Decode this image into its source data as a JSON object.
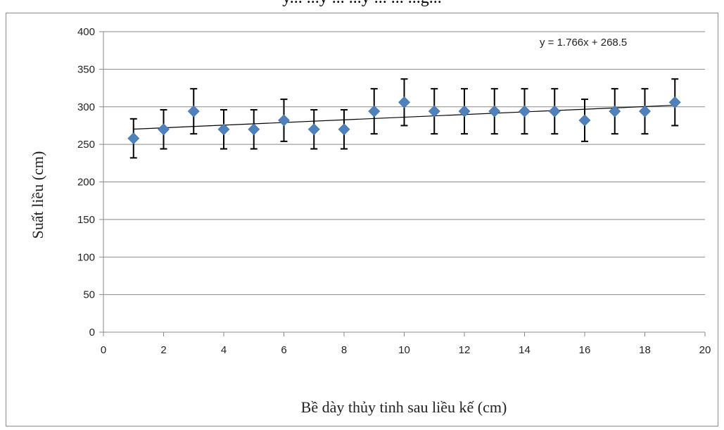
{
  "chart_data": {
    "type": "scatter",
    "top_fragment": "y... ...y ... ...y ... ... ...g...",
    "xlabel": "Bề dày thủy tinh sau liều kế (cm)",
    "ylabel": "Suất liều (cm)",
    "xlim": [
      0,
      20
    ],
    "ylim": [
      0,
      400
    ],
    "xticks": [
      0,
      2,
      4,
      6,
      8,
      10,
      12,
      14,
      16,
      18,
      20
    ],
    "yticks": [
      0,
      50,
      100,
      150,
      200,
      250,
      300,
      350,
      400
    ],
    "grid": "horizontal",
    "marker_color": "#4f81bd",
    "trendline": {
      "equation": "y = 1.766x + 268.5",
      "slope": 1.766,
      "intercept": 268.5
    },
    "points": [
      {
        "x": 1,
        "y": 258,
        "err": 26
      },
      {
        "x": 2,
        "y": 270,
        "err": 26
      },
      {
        "x": 3,
        "y": 294,
        "err": 30
      },
      {
        "x": 4,
        "y": 270,
        "err": 26
      },
      {
        "x": 5,
        "y": 270,
        "err": 26
      },
      {
        "x": 6,
        "y": 282,
        "err": 28
      },
      {
        "x": 7,
        "y": 270,
        "err": 26
      },
      {
        "x": 8,
        "y": 270,
        "err": 26
      },
      {
        "x": 9,
        "y": 294,
        "err": 30
      },
      {
        "x": 10,
        "y": 306,
        "err": 31
      },
      {
        "x": 11,
        "y": 294,
        "err": 30
      },
      {
        "x": 12,
        "y": 294,
        "err": 30
      },
      {
        "x": 13,
        "y": 294,
        "err": 30
      },
      {
        "x": 14,
        "y": 294,
        "err": 30
      },
      {
        "x": 15,
        "y": 294,
        "err": 30
      },
      {
        "x": 16,
        "y": 282,
        "err": 28
      },
      {
        "x": 17,
        "y": 294,
        "err": 30
      },
      {
        "x": 18,
        "y": 294,
        "err": 30
      },
      {
        "x": 19,
        "y": 306,
        "err": 31
      }
    ]
  }
}
